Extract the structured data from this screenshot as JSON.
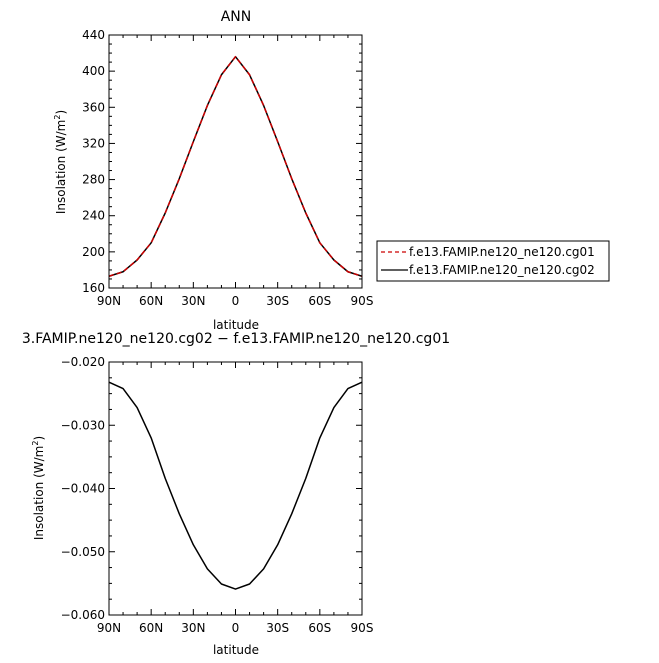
{
  "chart_data": [
    {
      "type": "line",
      "title": "ANN",
      "xlabel": "latitude",
      "ylabel": "Insolation (W/m²)",
      "ylabel_parts": {
        "main": "Insolation (W/m",
        "sup": "2",
        "close": ")"
      },
      "x_tick_labels": [
        "90N",
        "60N",
        "30N",
        "0",
        "30S",
        "60S",
        "90S"
      ],
      "y_tick_labels": [
        "160",
        "200",
        "240",
        "280",
        "320",
        "360",
        "400",
        "440"
      ],
      "xlim": [
        90,
        -90
      ],
      "ylim": [
        160,
        440
      ],
      "legend_position": "right",
      "x": [
        90,
        80,
        70,
        60,
        50,
        40,
        30,
        20,
        10,
        0,
        -10,
        -20,
        -30,
        -40,
        -50,
        -60,
        -70,
        -80,
        -90
      ],
      "series": [
        {
          "name": "f.e13.FAMIP.ne120_ne120.cg01",
          "color": "#cc0000",
          "dash": "dashed",
          "values": [
            173,
            178,
            191,
            210,
            243,
            281,
            322,
            362,
            396,
            416,
            396,
            362,
            322,
            281,
            243,
            210,
            191,
            178,
            173
          ]
        },
        {
          "name": "f.e13.FAMIP.ne120_ne120.cg02",
          "color": "#000000",
          "dash": "solid",
          "values": [
            173,
            178,
            191,
            210,
            243,
            281,
            322,
            362,
            396,
            416,
            396,
            362,
            322,
            281,
            243,
            210,
            191,
            178,
            173
          ]
        }
      ]
    },
    {
      "type": "line",
      "title": "3.FAMIP.ne120_ne120.cg02 − f.e13.FAMIP.ne120_ne120.cg01",
      "xlabel": "latitude",
      "ylabel": "Insolation (W/m²)",
      "ylabel_parts": {
        "main": "Insolation (W/m",
        "sup": "2",
        "close": ")"
      },
      "x_tick_labels": [
        "90N",
        "60N",
        "30N",
        "0",
        "30S",
        "60S",
        "90S"
      ],
      "y_tick_labels": [
        "−0.060",
        "−0.050",
        "−0.040",
        "−0.030",
        "−0.020"
      ],
      "xlim": [
        90,
        -90
      ],
      "ylim": [
        -0.06,
        -0.02
      ],
      "x": [
        90,
        80,
        70,
        60,
        50,
        40,
        30,
        20,
        10,
        0,
        -10,
        -20,
        -30,
        -40,
        -50,
        -60,
        -70,
        -80,
        -90
      ],
      "series": [
        {
          "color": "#000000",
          "dash": "solid",
          "values": [
            -0.0232,
            -0.0242,
            -0.0272,
            -0.032,
            -0.0384,
            -0.044,
            -0.0489,
            -0.0527,
            -0.0551,
            -0.0559,
            -0.0551,
            -0.0527,
            -0.0489,
            -0.044,
            -0.0384,
            -0.032,
            -0.0272,
            -0.0242,
            -0.0232
          ]
        }
      ]
    }
  ]
}
